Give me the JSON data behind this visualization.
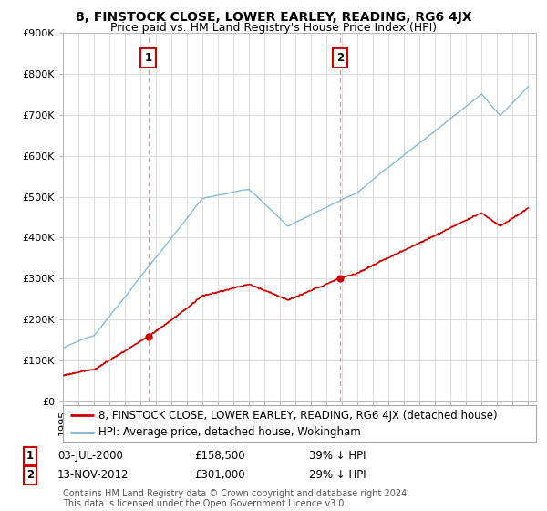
{
  "title": "8, FINSTOCK CLOSE, LOWER EARLEY, READING, RG6 4JX",
  "subtitle": "Price paid vs. HM Land Registry's House Price Index (HPI)",
  "ylim": [
    0,
    900000
  ],
  "yticks": [
    0,
    100000,
    200000,
    300000,
    400000,
    500000,
    600000,
    700000,
    800000,
    900000
  ],
  "ytick_labels": [
    "£0",
    "£100K",
    "£200K",
    "£300K",
    "£400K",
    "£500K",
    "£600K",
    "£700K",
    "£800K",
    "£900K"
  ],
  "hpi_color": "#7ab4d8",
  "price_color": "#cc0000",
  "vline_color": "#ff8888",
  "marker_color": "#cc0000",
  "background_color": "#ffffff",
  "grid_color": "#dddddd",
  "legend_label_price": "8, FINSTOCK CLOSE, LOWER EARLEY, READING, RG6 4JX (detached house)",
  "legend_label_hpi": "HPI: Average price, detached house, Wokingham",
  "transaction1_date": "03-JUL-2000",
  "transaction1_price": "£158,500",
  "transaction1_note": "39% ↓ HPI",
  "transaction1_year": 2000.5,
  "transaction1_value": 158500,
  "transaction2_date": "13-NOV-2012",
  "transaction2_price": "£301,000",
  "transaction2_note": "29% ↓ HPI",
  "transaction2_year": 2012.87,
  "transaction2_value": 301000,
  "footer": "Contains HM Land Registry data © Crown copyright and database right 2024.\nThis data is licensed under the Open Government Licence v3.0.",
  "title_fontsize": 10,
  "subtitle_fontsize": 9,
  "tick_fontsize": 8,
  "legend_fontsize": 8.5,
  "footer_fontsize": 7
}
